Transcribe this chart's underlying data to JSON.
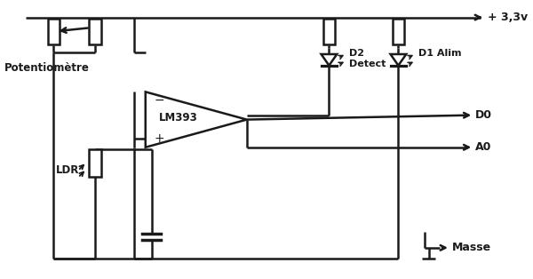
{
  "bg_color": "#ffffff",
  "line_color": "#1a1a1a",
  "lw": 1.8,
  "labels": {
    "vcc": "+ 3,3v",
    "potentiometre": "Potentiomètre",
    "lm393": "LM393",
    "ldr": "LDR",
    "d2": "D2",
    "detect": "Detect",
    "d1": "D1 Alim",
    "d0": "D0",
    "a0": "A0",
    "masse": "Masse",
    "minus": "−",
    "plus": "+"
  }
}
